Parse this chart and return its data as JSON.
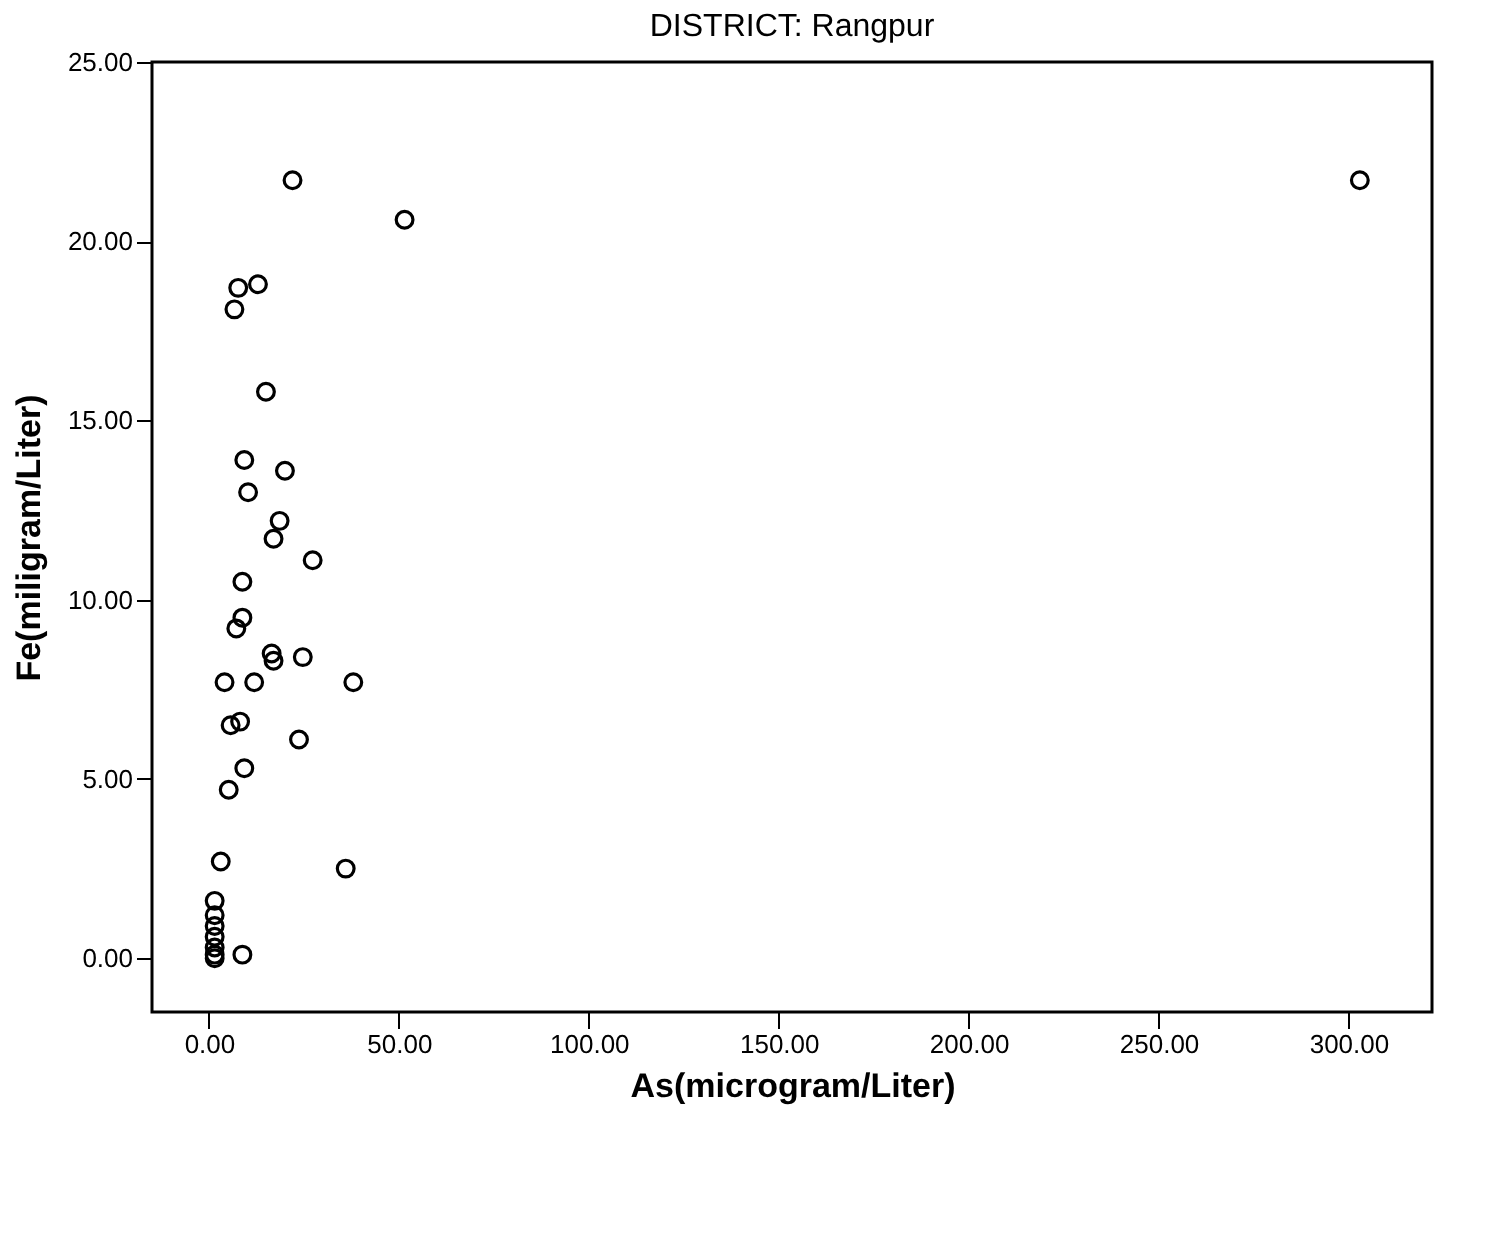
{
  "chart_data": {
    "type": "scatter",
    "title": "DISTRICT: Rangpur",
    "xlabel": "As(microgram/Liter)",
    "ylabel": "Fe(miligram/Liter)",
    "xlim": [
      -15,
      322
    ],
    "ylim": [
      -1.5,
      25
    ],
    "xticks": [
      {
        "value": 0,
        "label": "0.00"
      },
      {
        "value": 50,
        "label": "50.00"
      },
      {
        "value": 100,
        "label": "100.00"
      },
      {
        "value": 150,
        "label": "150.00"
      },
      {
        "value": 200,
        "label": "200.00"
      },
      {
        "value": 250,
        "label": "250.00"
      },
      {
        "value": 300,
        "label": "300.00"
      }
    ],
    "yticks": [
      {
        "value": 0,
        "label": "0.00"
      },
      {
        "value": 5,
        "label": "5.00"
      },
      {
        "value": 10,
        "label": "10.00"
      },
      {
        "value": 15,
        "label": "15.00"
      },
      {
        "value": 20,
        "label": "20.00"
      },
      {
        "value": 25,
        "label": "25.00"
      }
    ],
    "grid": false,
    "marker": "circle",
    "series": [
      {
        "color": "#000000",
        "x": [
          22,
          51.5,
          303,
          7.7,
          12.9,
          6.7,
          15,
          9.3,
          20,
          10.3,
          18.6,
          17,
          27.3,
          8.8,
          8.8,
          7.2,
          17,
          16.5,
          24.7,
          4.1,
          11.9,
          38,
          5.7,
          8.2,
          23.7,
          9.3,
          5.2,
          3.1,
          36,
          1.5,
          1.5,
          1.5,
          1.5,
          1.5,
          1.5,
          1.5,
          8.8
        ],
        "values": [
          21.7,
          20.6,
          21.7,
          18.7,
          18.8,
          18.1,
          15.8,
          13.9,
          13.6,
          13,
          12.2,
          11.7,
          11.1,
          10.5,
          9.5,
          9.2,
          8.3,
          8.5,
          8.4,
          7.7,
          7.7,
          7.7,
          6.5,
          6.6,
          6.1,
          5.3,
          4.7,
          2.7,
          2.5,
          1.6,
          1.2,
          0.9,
          0.6,
          0.3,
          0.1,
          0,
          0.1
        ]
      }
    ]
  }
}
